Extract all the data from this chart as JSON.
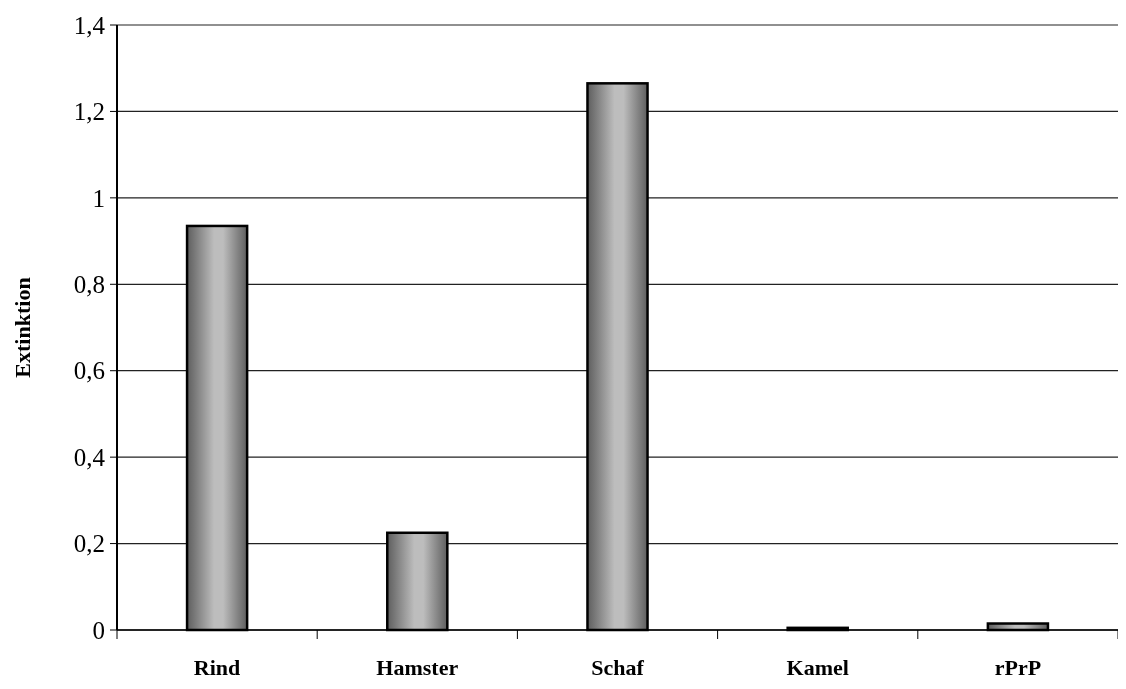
{
  "chart_data": {
    "type": "bar",
    "ylabel": "Extinktion",
    "categories": [
      "Rind",
      "Hamster",
      "Schaf",
      "Kamel",
      "rPrP"
    ],
    "values": [
      0.935,
      0.225,
      1.265,
      0.005,
      0.015
    ],
    "ylim": [
      0,
      1.4
    ],
    "yticks": [
      {
        "value": 0,
        "label": "0"
      },
      {
        "value": 0.2,
        "label": "0,2"
      },
      {
        "value": 0.4,
        "label": "0,4"
      },
      {
        "value": 0.6,
        "label": "0,6"
      },
      {
        "value": 0.8,
        "label": "0,8"
      },
      {
        "value": 1,
        "label": "1"
      },
      {
        "value": 1.2,
        "label": "1,2"
      },
      {
        "value": 1.4,
        "label": "1,4"
      }
    ],
    "grid": "y"
  }
}
